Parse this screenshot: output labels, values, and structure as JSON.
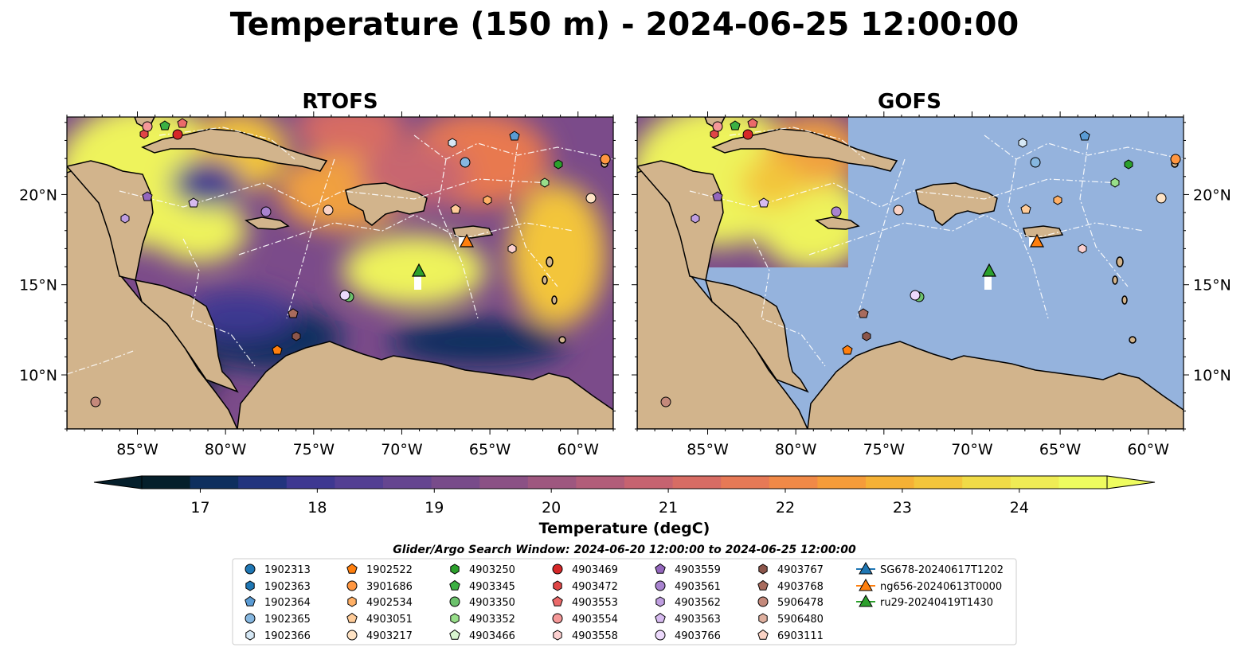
{
  "title": "Temperature (150 m) - 2024-06-25 12:00:00",
  "panels": [
    {
      "title": "RTOFS",
      "variant": "full"
    },
    {
      "title": "GOFS",
      "variant": "partial"
    }
  ],
  "map_extent": {
    "lon": [
      -89,
      -58
    ],
    "lat": [
      7,
      24.3
    ]
  },
  "lon_ticks": [
    {
      "value": -85,
      "label": "85°W"
    },
    {
      "value": -80,
      "label": "80°W"
    },
    {
      "value": -75,
      "label": "75°W"
    },
    {
      "value": -70,
      "label": "70°W"
    },
    {
      "value": -65,
      "label": "65°W"
    },
    {
      "value": -60,
      "label": "60°W"
    }
  ],
  "lat_ticks": [
    {
      "value": 20,
      "label": "20°N"
    },
    {
      "value": 15,
      "label": "15°N"
    },
    {
      "value": 10,
      "label": "10°N"
    }
  ],
  "colors": {
    "land": "#d2b48c",
    "ocean": "#95b3dd",
    "coast": "#000000"
  },
  "colorbar": {
    "label": "Temperature (degC)",
    "range": [
      16.5,
      24.75
    ],
    "ticks": [
      17,
      18,
      19,
      20,
      21,
      22,
      23,
      24
    ],
    "extend": "both",
    "colors": [
      "#051f2b",
      "#0e2f5e",
      "#22347e",
      "#3e3891",
      "#533f93",
      "#654590",
      "#784b8a",
      "#8b5185",
      "#9e577f",
      "#b25d79",
      "#c66370",
      "#d76c64",
      "#e67956",
      "#f08947",
      "#f59c3a",
      "#f5b135",
      "#f3c53b",
      "#f0db47",
      "#efec55",
      "#eefc5f"
    ]
  },
  "search_window": "Glider/Argo Search Window: 2024-06-20 12:00:00 to 2024-06-25 12:00:00",
  "legend": [
    {
      "label": "1902313",
      "marker": "circle",
      "color": "#1f77b4"
    },
    {
      "label": "1902363",
      "marker": "hexagon",
      "color": "#1f77b4"
    },
    {
      "label": "1902364",
      "marker": "pentagon",
      "color": "#5a9bd4"
    },
    {
      "label": "1902365",
      "marker": "circle",
      "color": "#86b7e0"
    },
    {
      "label": "1902366",
      "marker": "hexagon",
      "color": "#d6e8f5"
    },
    {
      "label": "1902522",
      "marker": "pentagon",
      "color": "#ff7f0e"
    },
    {
      "label": "3901686",
      "marker": "circle",
      "color": "#ff9640"
    },
    {
      "label": "4902534",
      "marker": "hexagon",
      "color": "#ffb066"
    },
    {
      "label": "4903051",
      "marker": "pentagon",
      "color": "#ffcc99"
    },
    {
      "label": "4903217",
      "marker": "circle",
      "color": "#ffe3c4"
    },
    {
      "label": "4903250",
      "marker": "hexagon",
      "color": "#2ca02c"
    },
    {
      "label": "4903345",
      "marker": "pentagon",
      "color": "#3cb043"
    },
    {
      "label": "4903350",
      "marker": "circle",
      "color": "#6cc26c"
    },
    {
      "label": "4903352",
      "marker": "hexagon",
      "color": "#98df8a"
    },
    {
      "label": "4903466",
      "marker": "pentagon",
      "color": "#d9f5d0"
    },
    {
      "label": "4903469",
      "marker": "circle",
      "color": "#d62728"
    },
    {
      "label": "4903472",
      "marker": "hexagon",
      "color": "#e04646"
    },
    {
      "label": "4903553",
      "marker": "pentagon",
      "color": "#eb6a6a"
    },
    {
      "label": "4903554",
      "marker": "circle",
      "color": "#f59898"
    },
    {
      "label": "4903558",
      "marker": "hexagon",
      "color": "#fcd0d0"
    },
    {
      "label": "4903559",
      "marker": "pentagon",
      "color": "#9467bd"
    },
    {
      "label": "4903561",
      "marker": "circle",
      "color": "#a883cf"
    },
    {
      "label": "4903562",
      "marker": "hexagon",
      "color": "#bf9ee0"
    },
    {
      "label": "4903563",
      "marker": "pentagon",
      "color": "#d6baef"
    },
    {
      "label": "4903766",
      "marker": "circle",
      "color": "#ecd9fb"
    },
    {
      "label": "4903767",
      "marker": "hexagon",
      "color": "#8c564b"
    },
    {
      "label": "4903768",
      "marker": "pentagon",
      "color": "#a86b5d"
    },
    {
      "label": "5906478",
      "marker": "circle",
      "color": "#c4897b"
    },
    {
      "label": "5906480",
      "marker": "hexagon",
      "color": "#dfb09f"
    },
    {
      "label": "6903111",
      "marker": "pentagon",
      "color": "#fad3c5"
    },
    {
      "label": "SG678-20240617T1202",
      "marker": "triangle-line",
      "color": "#1f77b4"
    },
    {
      "label": "ng656-20240613T0000",
      "marker": "triangle-line",
      "color": "#ff7f0e"
    },
    {
      "label": "ru29-20240419T1430",
      "marker": "triangle-line",
      "color": "#2ca02c"
    }
  ],
  "chart_data": {
    "type": "scatter",
    "title": "Temperature (150 m) - 2024-06-25 12:00:00",
    "xlabel": "",
    "ylabel": "",
    "xlim": [
      -89,
      -58
    ],
    "ylim": [
      7,
      24.3
    ],
    "field": "Temperature (degC) at 150 m",
    "argo_floats": [
      {
        "id": "4903472",
        "lon": -83.9,
        "lat": 23.4
      },
      {
        "id": "4903554",
        "lon": -83.5,
        "lat": 23.7
      },
      {
        "id": "4903345",
        "lon": -82.8,
        "lat": 23.8
      },
      {
        "id": "4903469",
        "lon": -82.5,
        "lat": 23.3
      },
      {
        "id": "4903553",
        "lon": -81.5,
        "lat": 23.9
      },
      {
        "id": "4903466",
        "lon": -83.0,
        "lat": 24.0
      },
      {
        "id": "4903559",
        "lon": -84.5,
        "lat": 19.8
      },
      {
        "id": "4903563",
        "lon": -81.8,
        "lat": 19.5
      },
      {
        "id": "4903562",
        "lon": -86.0,
        "lat": 18.6
      },
      {
        "id": "4903561",
        "lon": -77.0,
        "lat": 19.0
      },
      {
        "id": "6903111",
        "lon": -74.5,
        "lat": 19.1
      },
      {
        "id": "4903051",
        "lon": -66.5,
        "lat": 19.1
      },
      {
        "id": "4902534",
        "lon": -65.0,
        "lat": 19.6
      },
      {
        "id": "1902366",
        "lon": -67.0,
        "lat": 22.8
      },
      {
        "id": "1902365",
        "lon": -66.2,
        "lat": 21.8
      },
      {
        "id": "1902364",
        "lon": -63.5,
        "lat": 23.2
      },
      {
        "id": "4903250",
        "lon": -60.8,
        "lat": 21.7
      },
      {
        "id": "4903352",
        "lon": -61.5,
        "lat": 20.6
      },
      {
        "id": "3901686",
        "lon": -58.5,
        "lat": 21.9
      },
      {
        "id": "1902313",
        "lon": -58.5,
        "lat": 21.8
      },
      {
        "id": "4903217",
        "lon": -59.2,
        "lat": 19.7
      },
      {
        "id": "4903558",
        "lon": -63.5,
        "lat": 17.0
      },
      {
        "id": "4903350",
        "lon": -72.8,
        "lat": 14.3
      },
      {
        "id": "4903766",
        "lon": -73.0,
        "lat": 14.4
      },
      {
        "id": "4903768",
        "lon": -76.2,
        "lat": 13.4
      },
      {
        "id": "4903767",
        "lon": -76.0,
        "lat": 12.2
      },
      {
        "id": "1902522",
        "lon": -76.9,
        "lat": 11.4
      },
      {
        "id": "5906478",
        "lon": -87.7,
        "lat": 8.5
      }
    ],
    "gliders": [
      {
        "id": "ng656-20240613T0000",
        "lon": -66.4,
        "lat": 17.4
      },
      {
        "id": "ru29-20240419T1430",
        "lon": -69.0,
        "lat": 15.8
      }
    ]
  }
}
